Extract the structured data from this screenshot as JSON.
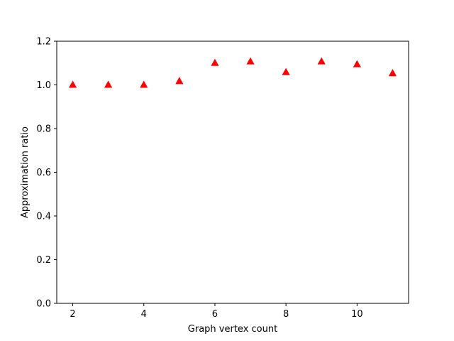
{
  "chart_data": {
    "type": "scatter",
    "title": "",
    "xlabel": "Graph vertex count",
    "ylabel": "Approximation ratio",
    "xlim": [
      1.55,
      11.45
    ],
    "ylim": [
      0.0,
      1.2
    ],
    "xticks": [
      2,
      4,
      6,
      8,
      10
    ],
    "xtick_labels": [
      "2",
      "4",
      "6",
      "8",
      "10"
    ],
    "yticks": [
      0.0,
      0.2,
      0.4,
      0.6,
      0.8,
      1.0,
      1.2
    ],
    "ytick_labels": [
      "0.0",
      "0.2",
      "0.4",
      "0.6",
      "0.8",
      "1.0",
      "1.2"
    ],
    "grid": false,
    "legend": "none",
    "series": [
      {
        "marker": "triangle-up",
        "color": "#ff0000",
        "x": [
          2,
          3,
          4,
          5,
          6,
          7,
          8,
          9,
          10,
          11
        ],
        "y": [
          1.0,
          1.0,
          1.0,
          1.017,
          1.1,
          1.107,
          1.058,
          1.107,
          1.094,
          1.053
        ]
      }
    ]
  }
}
